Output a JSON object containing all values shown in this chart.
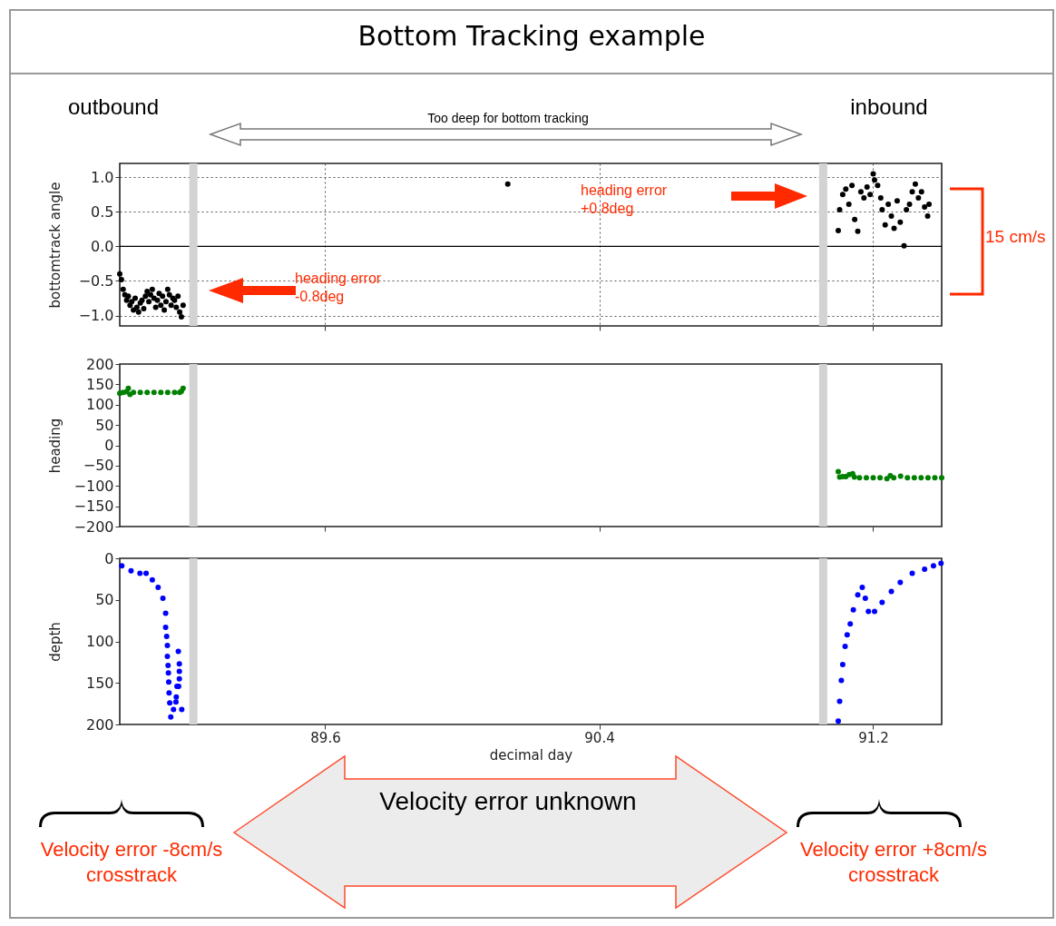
{
  "chart_data": [
    {
      "type": "scatter",
      "title": "Bottom Tracking example",
      "ylabel": "bottomtrack angle",
      "xlim": [
        89.0,
        91.4
      ],
      "xticks": [
        89.6,
        90.4,
        91.2
      ],
      "ylim": [
        -1.15,
        1.2
      ],
      "yticks": [
        {
          "value": -1,
          "label": "−1.0"
        },
        {
          "value": -0.5,
          "label": "−0.5"
        },
        {
          "value": 0,
          "label": "0.0"
        },
        {
          "value": 0.5,
          "label": "0.5"
        },
        {
          "value": 1,
          "label": "1.0"
        }
      ],
      "grid": true,
      "tick_labels": "y",
      "marker": "circle",
      "series": [
        {
          "color": "#000000",
          "x": [
            89.0,
            89.005,
            89.01,
            89.015,
            89.02,
            89.025,
            89.03,
            89.035,
            89.04,
            89.045,
            89.05,
            89.055,
            89.06,
            89.065,
            89.07,
            89.075,
            89.08,
            89.085,
            89.09,
            89.095,
            89.1,
            89.105,
            89.11,
            89.115,
            89.12,
            89.125,
            89.13,
            89.135,
            89.14,
            89.145,
            89.15,
            89.155,
            89.16,
            89.165,
            89.17,
            89.175,
            89.18,
            89.185,
            90.133,
            91.098,
            91.102,
            91.111,
            91.12,
            91.129,
            91.138,
            91.146,
            91.155,
            91.164,
            91.173,
            91.182,
            91.191,
            91.2,
            91.204,
            91.213,
            91.222,
            91.226,
            91.235,
            91.244,
            91.253,
            91.261,
            91.27,
            91.279,
            91.29,
            91.297,
            91.306,
            91.314,
            91.323,
            91.332,
            91.341,
            91.35,
            91.359,
            91.363
          ],
          "values": [
            -0.4,
            -0.48,
            -0.62,
            -0.7,
            -0.78,
            -0.72,
            -0.85,
            -0.8,
            -0.92,
            -0.75,
            -0.88,
            -0.95,
            -0.82,
            -0.78,
            -0.9,
            -0.72,
            -0.65,
            -0.8,
            -0.7,
            -0.62,
            -0.75,
            -0.88,
            -0.78,
            -0.68,
            -0.85,
            -0.72,
            -0.92,
            -0.8,
            -0.62,
            -0.7,
            -0.85,
            -0.75,
            -0.78,
            -0.88,
            -0.72,
            -0.95,
            -1.02,
            -0.85,
            0.9,
            0.23,
            0.53,
            0.75,
            0.83,
            0.61,
            0.88,
            0.39,
            0.22,
            0.79,
            0.7,
            0.86,
            0.75,
            1.05,
            0.96,
            0.88,
            0.7,
            0.53,
            0.31,
            0.61,
            0.44,
            0.26,
            0.66,
            0.35,
            0.01,
            0.53,
            0.61,
            0.79,
            0.9,
            0.7,
            0.79,
            0.57,
            0.44,
            0.61
          ]
        }
      ],
      "ref_lines": [
        {
          "axis": "y",
          "value": 0,
          "color": "#000000"
        },
        {
          "axis": "x",
          "value": 89.215,
          "color": "#d3d3d3"
        },
        {
          "axis": "x",
          "value": 91.054,
          "color": "#d3d3d3"
        }
      ],
      "annotations": [
        "outbound",
        "inbound",
        "Too deep for bottom tracking",
        "heading error +0.8deg",
        "heading error -0.8deg",
        "15 cm/s",
        "Velocity error -8cm/s crosstrack",
        "Velocity error unknown",
        "Velocity error +8cm/s crosstrack"
      ]
    },
    {
      "type": "scatter",
      "ylabel": "heading",
      "xlim": [
        89.0,
        91.4
      ],
      "xticks": [
        89.6,
        90.4,
        91.2
      ],
      "ylim": [
        -200,
        200
      ],
      "yticks": [
        {
          "value": -200,
          "label": "−200"
        },
        {
          "value": -150,
          "label": "−150"
        },
        {
          "value": -100,
          "label": "−100"
        },
        {
          "value": -50,
          "label": "−50"
        },
        0,
        50,
        100,
        150,
        200
      ],
      "tick_labels": "y",
      "marker": "circle",
      "series": [
        {
          "color": "#008000",
          "x": [
            89.0,
            89.01,
            89.02,
            89.025,
            89.03,
            89.04,
            89.06,
            89.08,
            89.1,
            89.12,
            89.14,
            89.16,
            89.175,
            89.18,
            89.185,
            91.098,
            91.102,
            91.111,
            91.12,
            91.13,
            91.14,
            91.145,
            91.16,
            91.18,
            91.2,
            91.22,
            91.24,
            91.25,
            91.26,
            91.28,
            91.3,
            91.32,
            91.34,
            91.36,
            91.38,
            91.4
          ],
          "values": [
            128,
            130,
            132,
            140,
            125,
            130,
            130,
            130,
            130,
            130,
            130,
            130,
            130,
            133,
            140,
            -65,
            -78,
            -77,
            -77,
            -72,
            -70,
            -78,
            -80,
            -80,
            -80,
            -80,
            -82,
            -75,
            -80,
            -76,
            -80,
            -80,
            -80,
            -80,
            -80,
            -80
          ]
        }
      ],
      "ref_lines": [
        {
          "axis": "x",
          "value": 89.215,
          "color": "#d3d3d3"
        },
        {
          "axis": "x",
          "value": 91.054,
          "color": "#d3d3d3"
        }
      ]
    },
    {
      "type": "scatter",
      "ylabel": "depth",
      "xlabel": "decimal day",
      "xlim": [
        89.0,
        91.4
      ],
      "xticks": [
        89.6,
        90.4,
        91.2
      ],
      "ylim": [
        200,
        0
      ],
      "yticks": [
        0,
        50,
        100,
        150,
        200
      ],
      "marker": "circle",
      "series": [
        {
          "color": "#0000ff",
          "x": [
            89.006,
            89.033,
            89.059,
            89.077,
            89.095,
            89.112,
            89.126,
            89.134,
            89.134,
            89.137,
            89.139,
            89.139,
            89.141,
            89.142,
            89.143,
            89.144,
            89.146,
            89.149,
            89.157,
            89.164,
            89.165,
            89.167,
            89.172,
            89.174,
            89.174,
            89.174,
            89.171,
            89.181,
            91.098,
            91.102,
            91.107,
            91.111,
            91.118,
            91.124,
            91.133,
            91.142,
            91.155,
            91.168,
            91.177,
            91.186,
            91.204,
            91.226,
            91.253,
            91.279,
            91.314,
            91.35,
            91.376,
            91.398
          ],
          "values": [
            9,
            15,
            18,
            18,
            26,
            35,
            48,
            66,
            83,
            94,
            105,
            118,
            129,
            138,
            149,
            162,
            174,
            191,
            182,
            173,
            167,
            154,
            154,
            145,
            136,
            127,
            112,
            182,
            196,
            172,
            147,
            128,
            106,
            92,
            79,
            62,
            44,
            35,
            48,
            64,
            64,
            53,
            40,
            29,
            18,
            13,
            9,
            6
          ]
        }
      ],
      "ref_lines": [
        {
          "axis": "x",
          "value": 89.215,
          "color": "#d3d3d3"
        },
        {
          "axis": "x",
          "value": 91.054,
          "color": "#d3d3d3"
        }
      ]
    }
  ]
}
